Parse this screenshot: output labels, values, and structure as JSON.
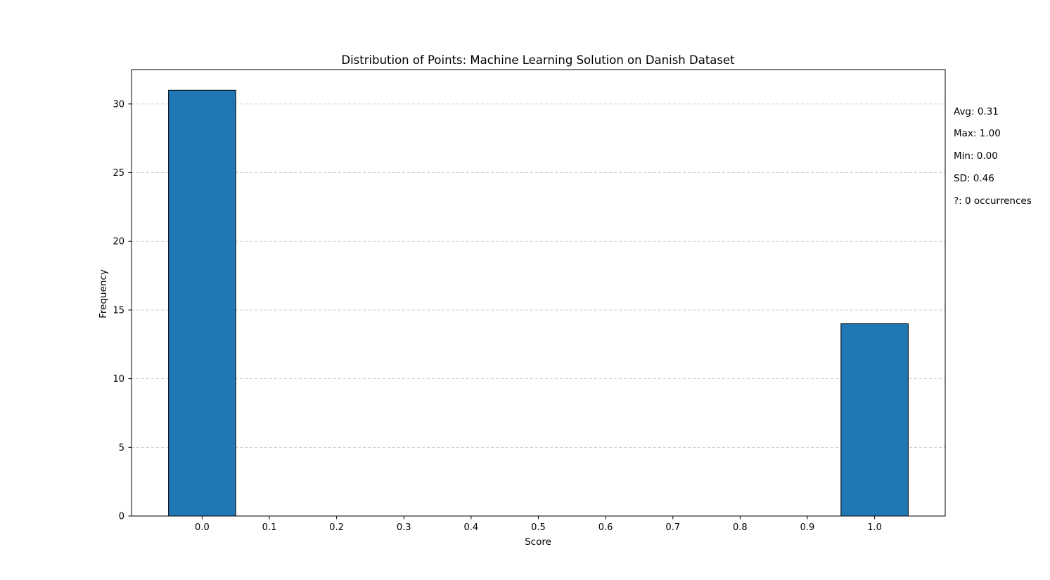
{
  "chart_data": {
    "type": "bar",
    "title": "Distribution of Points: Machine Learning Solution on Danish Dataset",
    "xlabel": "Score",
    "ylabel": "Frequency",
    "xlim": [
      -0.105,
      1.105
    ],
    "ylim": [
      0,
      32.5
    ],
    "x": [
      0.0,
      1.0
    ],
    "values": [
      31,
      14
    ],
    "bar_width": 0.1,
    "bar_color": "#1f77b4",
    "bar_edge_color": "#000000",
    "x_ticks": [
      0.0,
      0.1,
      0.2,
      0.3,
      0.4,
      0.5,
      0.6,
      0.7,
      0.8,
      0.9,
      1.0
    ],
    "x_tick_labels": [
      "0.0",
      "0.1",
      "0.2",
      "0.3",
      "0.4",
      "0.5",
      "0.6",
      "0.7",
      "0.8",
      "0.9",
      "1.0"
    ],
    "y_ticks": [
      0,
      5,
      10,
      15,
      20,
      25,
      30
    ],
    "y_tick_labels": [
      "0",
      "5",
      "10",
      "15",
      "20",
      "25",
      "30"
    ],
    "grid": "y-dashed",
    "grid_color": "#c4c4c4",
    "annotations": [
      "Avg: 0.31",
      "Max: 1.00",
      "Min: 0.00",
      "SD: 0.46",
      "?: 0 occurrences"
    ]
  }
}
